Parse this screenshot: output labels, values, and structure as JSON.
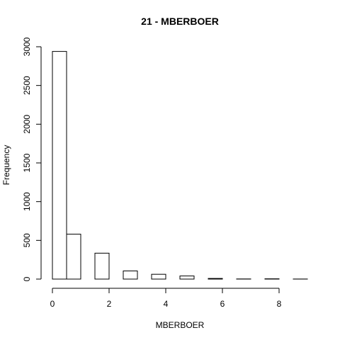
{
  "chart_data": {
    "type": "bar",
    "title": "21 - MBERBOER",
    "xlabel": "MBERBOER",
    "ylabel": "Frequency",
    "bins": [
      {
        "x0": 0.0,
        "x1": 0.5,
        "count": 2940
      },
      {
        "x0": 0.5,
        "x1": 1.0,
        "count": 580
      },
      {
        "x0": 1.0,
        "x1": 1.5,
        "count": 0
      },
      {
        "x0": 1.5,
        "x1": 2.0,
        "count": 335
      },
      {
        "x0": 2.0,
        "x1": 2.5,
        "count": 0
      },
      {
        "x0": 2.5,
        "x1": 3.0,
        "count": 105
      },
      {
        "x0": 3.0,
        "x1": 3.5,
        "count": 0
      },
      {
        "x0": 3.5,
        "x1": 4.0,
        "count": 62
      },
      {
        "x0": 4.0,
        "x1": 4.5,
        "count": 0
      },
      {
        "x0": 4.5,
        "x1": 5.0,
        "count": 40
      },
      {
        "x0": 5.0,
        "x1": 5.5,
        "count": 0
      },
      {
        "x0": 5.5,
        "x1": 6.0,
        "count": 8
      },
      {
        "x0": 6.0,
        "x1": 6.5,
        "count": 0
      },
      {
        "x0": 6.5,
        "x1": 7.0,
        "count": 2
      },
      {
        "x0": 7.0,
        "x1": 7.5,
        "count": 0
      },
      {
        "x0": 7.5,
        "x1": 8.0,
        "count": 4
      },
      {
        "x0": 8.0,
        "x1": 8.5,
        "count": 0
      },
      {
        "x0": 8.5,
        "x1": 9.0,
        "count": 1
      }
    ],
    "xticks": [
      0,
      2,
      4,
      6,
      8
    ],
    "yticks": [
      0,
      500,
      1000,
      1500,
      2000,
      2500,
      3000
    ],
    "xlim": [
      0,
      9
    ],
    "ylim": [
      0,
      3000
    ],
    "grid": false,
    "legend": "none"
  }
}
